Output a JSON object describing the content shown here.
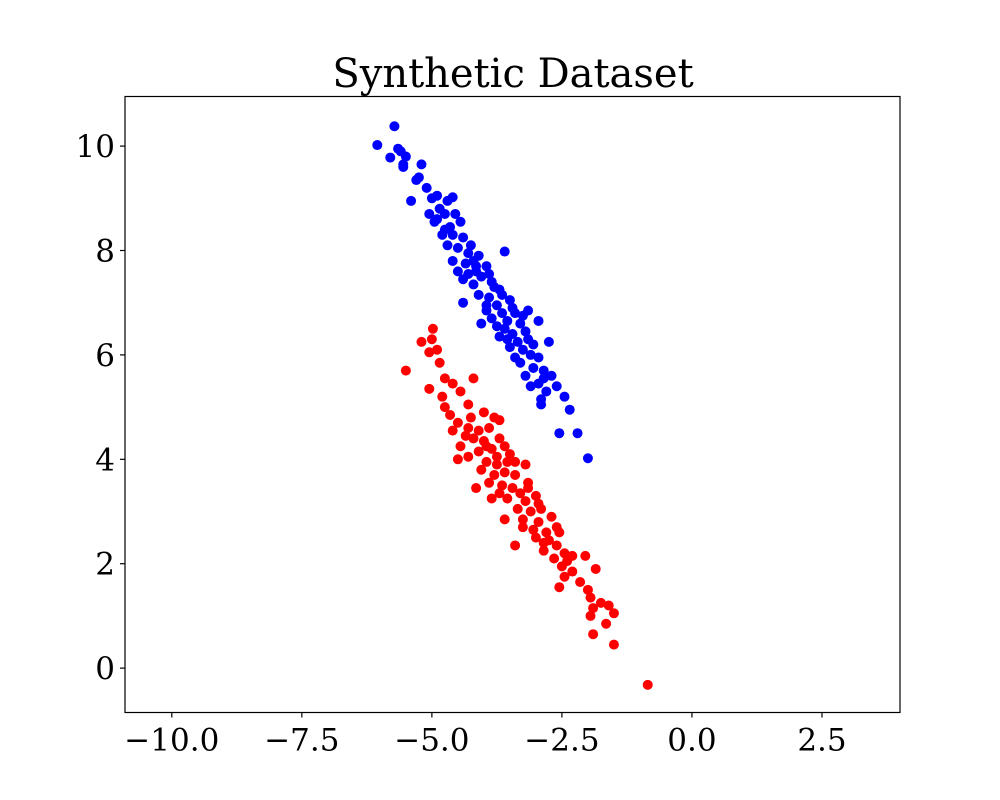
{
  "chart_data": {
    "type": "scatter",
    "title": "Synthetic Dataset",
    "xlabel": "",
    "ylabel": "",
    "xlim": [
      -10.9,
      4.0
    ],
    "ylim": [
      -0.85,
      10.95
    ],
    "grid": false,
    "xticks": [
      -10.0,
      -7.5,
      -5.0,
      -2.5,
      0.0,
      2.5
    ],
    "xtick_labels": [
      "−10.0",
      "−7.5",
      "−5.0",
      "−2.5",
      "0.0",
      "2.5"
    ],
    "yticks": [
      0,
      2,
      4,
      6,
      8,
      10
    ],
    "ytick_labels": [
      "0",
      "2",
      "4",
      "6",
      "8",
      "10"
    ],
    "series": [
      {
        "color": "#0000ff",
        "points": [
          [
            -5.72,
            10.38
          ],
          [
            -6.05,
            10.02
          ],
          [
            -5.65,
            9.95
          ],
          [
            -5.8,
            9.78
          ],
          [
            -5.5,
            9.8
          ],
          [
            -5.55,
            9.65
          ],
          [
            -5.2,
            9.65
          ],
          [
            -5.25,
            9.4
          ],
          [
            -5.1,
            9.2
          ],
          [
            -4.9,
            9.05
          ],
          [
            -5.0,
            9.0
          ],
          [
            -4.85,
            8.8
          ],
          [
            -4.6,
            9.02
          ],
          [
            -4.7,
            8.95
          ],
          [
            -5.4,
            8.95
          ],
          [
            -5.05,
            8.7
          ],
          [
            -4.55,
            8.7
          ],
          [
            -4.95,
            8.55
          ],
          [
            -4.75,
            8.4
          ],
          [
            -4.45,
            8.55
          ],
          [
            -4.6,
            8.3
          ],
          [
            -4.4,
            8.25
          ],
          [
            -4.25,
            8.1
          ],
          [
            -4.5,
            8.05
          ],
          [
            -4.7,
            8.1
          ],
          [
            -4.8,
            8.3
          ],
          [
            -4.3,
            7.95
          ],
          [
            -4.1,
            7.9
          ],
          [
            -4.35,
            7.75
          ],
          [
            -4.15,
            7.7
          ],
          [
            -3.6,
            7.98
          ],
          [
            -4.5,
            7.6
          ],
          [
            -4.3,
            7.55
          ],
          [
            -4.05,
            7.5
          ],
          [
            -3.95,
            7.7
          ],
          [
            -3.85,
            7.4
          ],
          [
            -4.2,
            7.35
          ],
          [
            -3.8,
            7.3
          ],
          [
            -4.1,
            7.15
          ],
          [
            -3.9,
            7.1
          ],
          [
            -3.7,
            7.25
          ],
          [
            -4.4,
            7.0
          ],
          [
            -3.75,
            6.95
          ],
          [
            -3.5,
            7.05
          ],
          [
            -3.95,
            6.85
          ],
          [
            -3.65,
            6.8
          ],
          [
            -3.85,
            6.7
          ],
          [
            -3.4,
            6.8
          ],
          [
            -3.55,
            6.65
          ],
          [
            -4.05,
            6.6
          ],
          [
            -3.3,
            6.6
          ],
          [
            -3.6,
            6.5
          ],
          [
            -3.45,
            6.4
          ],
          [
            -3.2,
            6.45
          ],
          [
            -3.7,
            6.35
          ],
          [
            -3.15,
            6.3
          ],
          [
            -3.35,
            6.25
          ],
          [
            -2.95,
            6.65
          ],
          [
            -3.5,
            6.15
          ],
          [
            -3.25,
            6.1
          ],
          [
            -2.75,
            6.25
          ],
          [
            -3.1,
            6.0
          ],
          [
            -2.95,
            5.95
          ],
          [
            -3.3,
            5.85
          ],
          [
            -3.05,
            5.75
          ],
          [
            -2.85,
            5.7
          ],
          [
            -3.2,
            5.6
          ],
          [
            -2.7,
            5.6
          ],
          [
            -2.95,
            5.45
          ],
          [
            -3.1,
            5.4
          ],
          [
            -2.6,
            5.4
          ],
          [
            -2.8,
            5.3
          ],
          [
            -2.9,
            5.15
          ],
          [
            -2.45,
            5.2
          ],
          [
            -2.9,
            5.05
          ],
          [
            -2.35,
            4.95
          ],
          [
            -2.55,
            4.5
          ],
          [
            -2.2,
            4.5
          ],
          [
            -2.0,
            4.02
          ],
          [
            -5.55,
            9.6
          ],
          [
            -4.9,
            8.6
          ],
          [
            -4.65,
            8.45
          ],
          [
            -4.2,
            7.8
          ],
          [
            -3.9,
            7.55
          ],
          [
            -3.45,
            6.9
          ],
          [
            -3.25,
            6.75
          ],
          [
            -3.75,
            6.55
          ],
          [
            -3.05,
            6.2
          ],
          [
            -3.4,
            5.95
          ],
          [
            -2.85,
            5.55
          ],
          [
            -4.6,
            7.8
          ],
          [
            -4.4,
            7.45
          ],
          [
            -3.65,
            7.15
          ],
          [
            -3.95,
            6.95
          ],
          [
            -3.15,
            6.85
          ],
          [
            -5.6,
            9.9
          ],
          [
            -5.3,
            9.35
          ],
          [
            -4.75,
            8.7
          ],
          [
            -4.15,
            7.6
          ],
          [
            -3.55,
            6.3
          ]
        ]
      },
      {
        "color": "#ff0000",
        "points": [
          [
            -4.98,
            6.5
          ],
          [
            -5.0,
            6.3
          ],
          [
            -5.2,
            6.25
          ],
          [
            -4.9,
            6.1
          ],
          [
            -5.05,
            6.05
          ],
          [
            -4.85,
            5.85
          ],
          [
            -5.5,
            5.7
          ],
          [
            -4.75,
            5.55
          ],
          [
            -4.6,
            5.45
          ],
          [
            -4.45,
            5.3
          ],
          [
            -4.2,
            5.55
          ],
          [
            -5.05,
            5.35
          ],
          [
            -4.75,
            5.0
          ],
          [
            -4.65,
            4.85
          ],
          [
            -4.3,
            5.05
          ],
          [
            -4.0,
            4.9
          ],
          [
            -3.8,
            4.8
          ],
          [
            -4.5,
            4.7
          ],
          [
            -4.3,
            4.6
          ],
          [
            -4.1,
            4.55
          ],
          [
            -3.9,
            4.6
          ],
          [
            -4.2,
            4.4
          ],
          [
            -4.0,
            4.35
          ],
          [
            -3.7,
            4.4
          ],
          [
            -4.45,
            4.25
          ],
          [
            -4.1,
            4.15
          ],
          [
            -3.85,
            4.2
          ],
          [
            -3.6,
            4.25
          ],
          [
            -4.3,
            4.05
          ],
          [
            -4.5,
            4.0
          ],
          [
            -3.95,
            3.95
          ],
          [
            -3.75,
            3.9
          ],
          [
            -3.55,
            3.95
          ],
          [
            -3.2,
            3.9
          ],
          [
            -4.05,
            3.8
          ],
          [
            -3.8,
            3.7
          ],
          [
            -3.6,
            3.75
          ],
          [
            -3.4,
            3.7
          ],
          [
            -3.9,
            3.55
          ],
          [
            -3.65,
            3.5
          ],
          [
            -3.45,
            3.45
          ],
          [
            -4.15,
            3.45
          ],
          [
            -3.3,
            3.35
          ],
          [
            -3.55,
            3.25
          ],
          [
            -3.2,
            3.2
          ],
          [
            -3.85,
            3.25
          ],
          [
            -3.0,
            3.3
          ],
          [
            -3.35,
            3.05
          ],
          [
            -3.1,
            3.0
          ],
          [
            -2.9,
            3.05
          ],
          [
            -3.6,
            2.85
          ],
          [
            -3.25,
            2.85
          ],
          [
            -2.95,
            2.8
          ],
          [
            -2.7,
            2.9
          ],
          [
            -3.05,
            2.65
          ],
          [
            -2.8,
            2.6
          ],
          [
            -2.55,
            2.6
          ],
          [
            -3.0,
            2.5
          ],
          [
            -2.75,
            2.45
          ],
          [
            -3.4,
            2.35
          ],
          [
            -2.6,
            2.35
          ],
          [
            -2.85,
            2.25
          ],
          [
            -2.45,
            2.2
          ],
          [
            -2.65,
            2.1
          ],
          [
            -2.3,
            2.15
          ],
          [
            -2.5,
            1.95
          ],
          [
            -2.05,
            2.15
          ],
          [
            -2.3,
            1.85
          ],
          [
            -1.85,
            1.9
          ],
          [
            -2.45,
            1.75
          ],
          [
            -2.15,
            1.65
          ],
          [
            -2.55,
            1.55
          ],
          [
            -2.0,
            1.5
          ],
          [
            -1.95,
            1.35
          ],
          [
            -1.75,
            1.25
          ],
          [
            -1.9,
            1.15
          ],
          [
            -1.6,
            1.2
          ],
          [
            -1.95,
            1.0
          ],
          [
            -1.5,
            1.05
          ],
          [
            -1.65,
            0.85
          ],
          [
            -1.9,
            0.65
          ],
          [
            -1.5,
            0.45
          ],
          [
            -0.85,
            -0.32
          ],
          [
            -3.7,
            4.75
          ],
          [
            -4.35,
            4.45
          ],
          [
            -3.5,
            4.1
          ],
          [
            -3.7,
            3.35
          ],
          [
            -3.15,
            3.55
          ],
          [
            -2.85,
            2.4
          ],
          [
            -3.25,
            2.7
          ],
          [
            -4.6,
            4.55
          ],
          [
            -3.95,
            4.25
          ],
          [
            -3.4,
            3.95
          ],
          [
            -2.95,
            3.15
          ],
          [
            -2.4,
            2.05
          ],
          [
            -4.8,
            5.2
          ],
          [
            -4.25,
            4.8
          ],
          [
            -3.75,
            4.05
          ],
          [
            -3.15,
            3.45
          ],
          [
            -2.6,
            2.7
          ]
        ]
      }
    ]
  }
}
